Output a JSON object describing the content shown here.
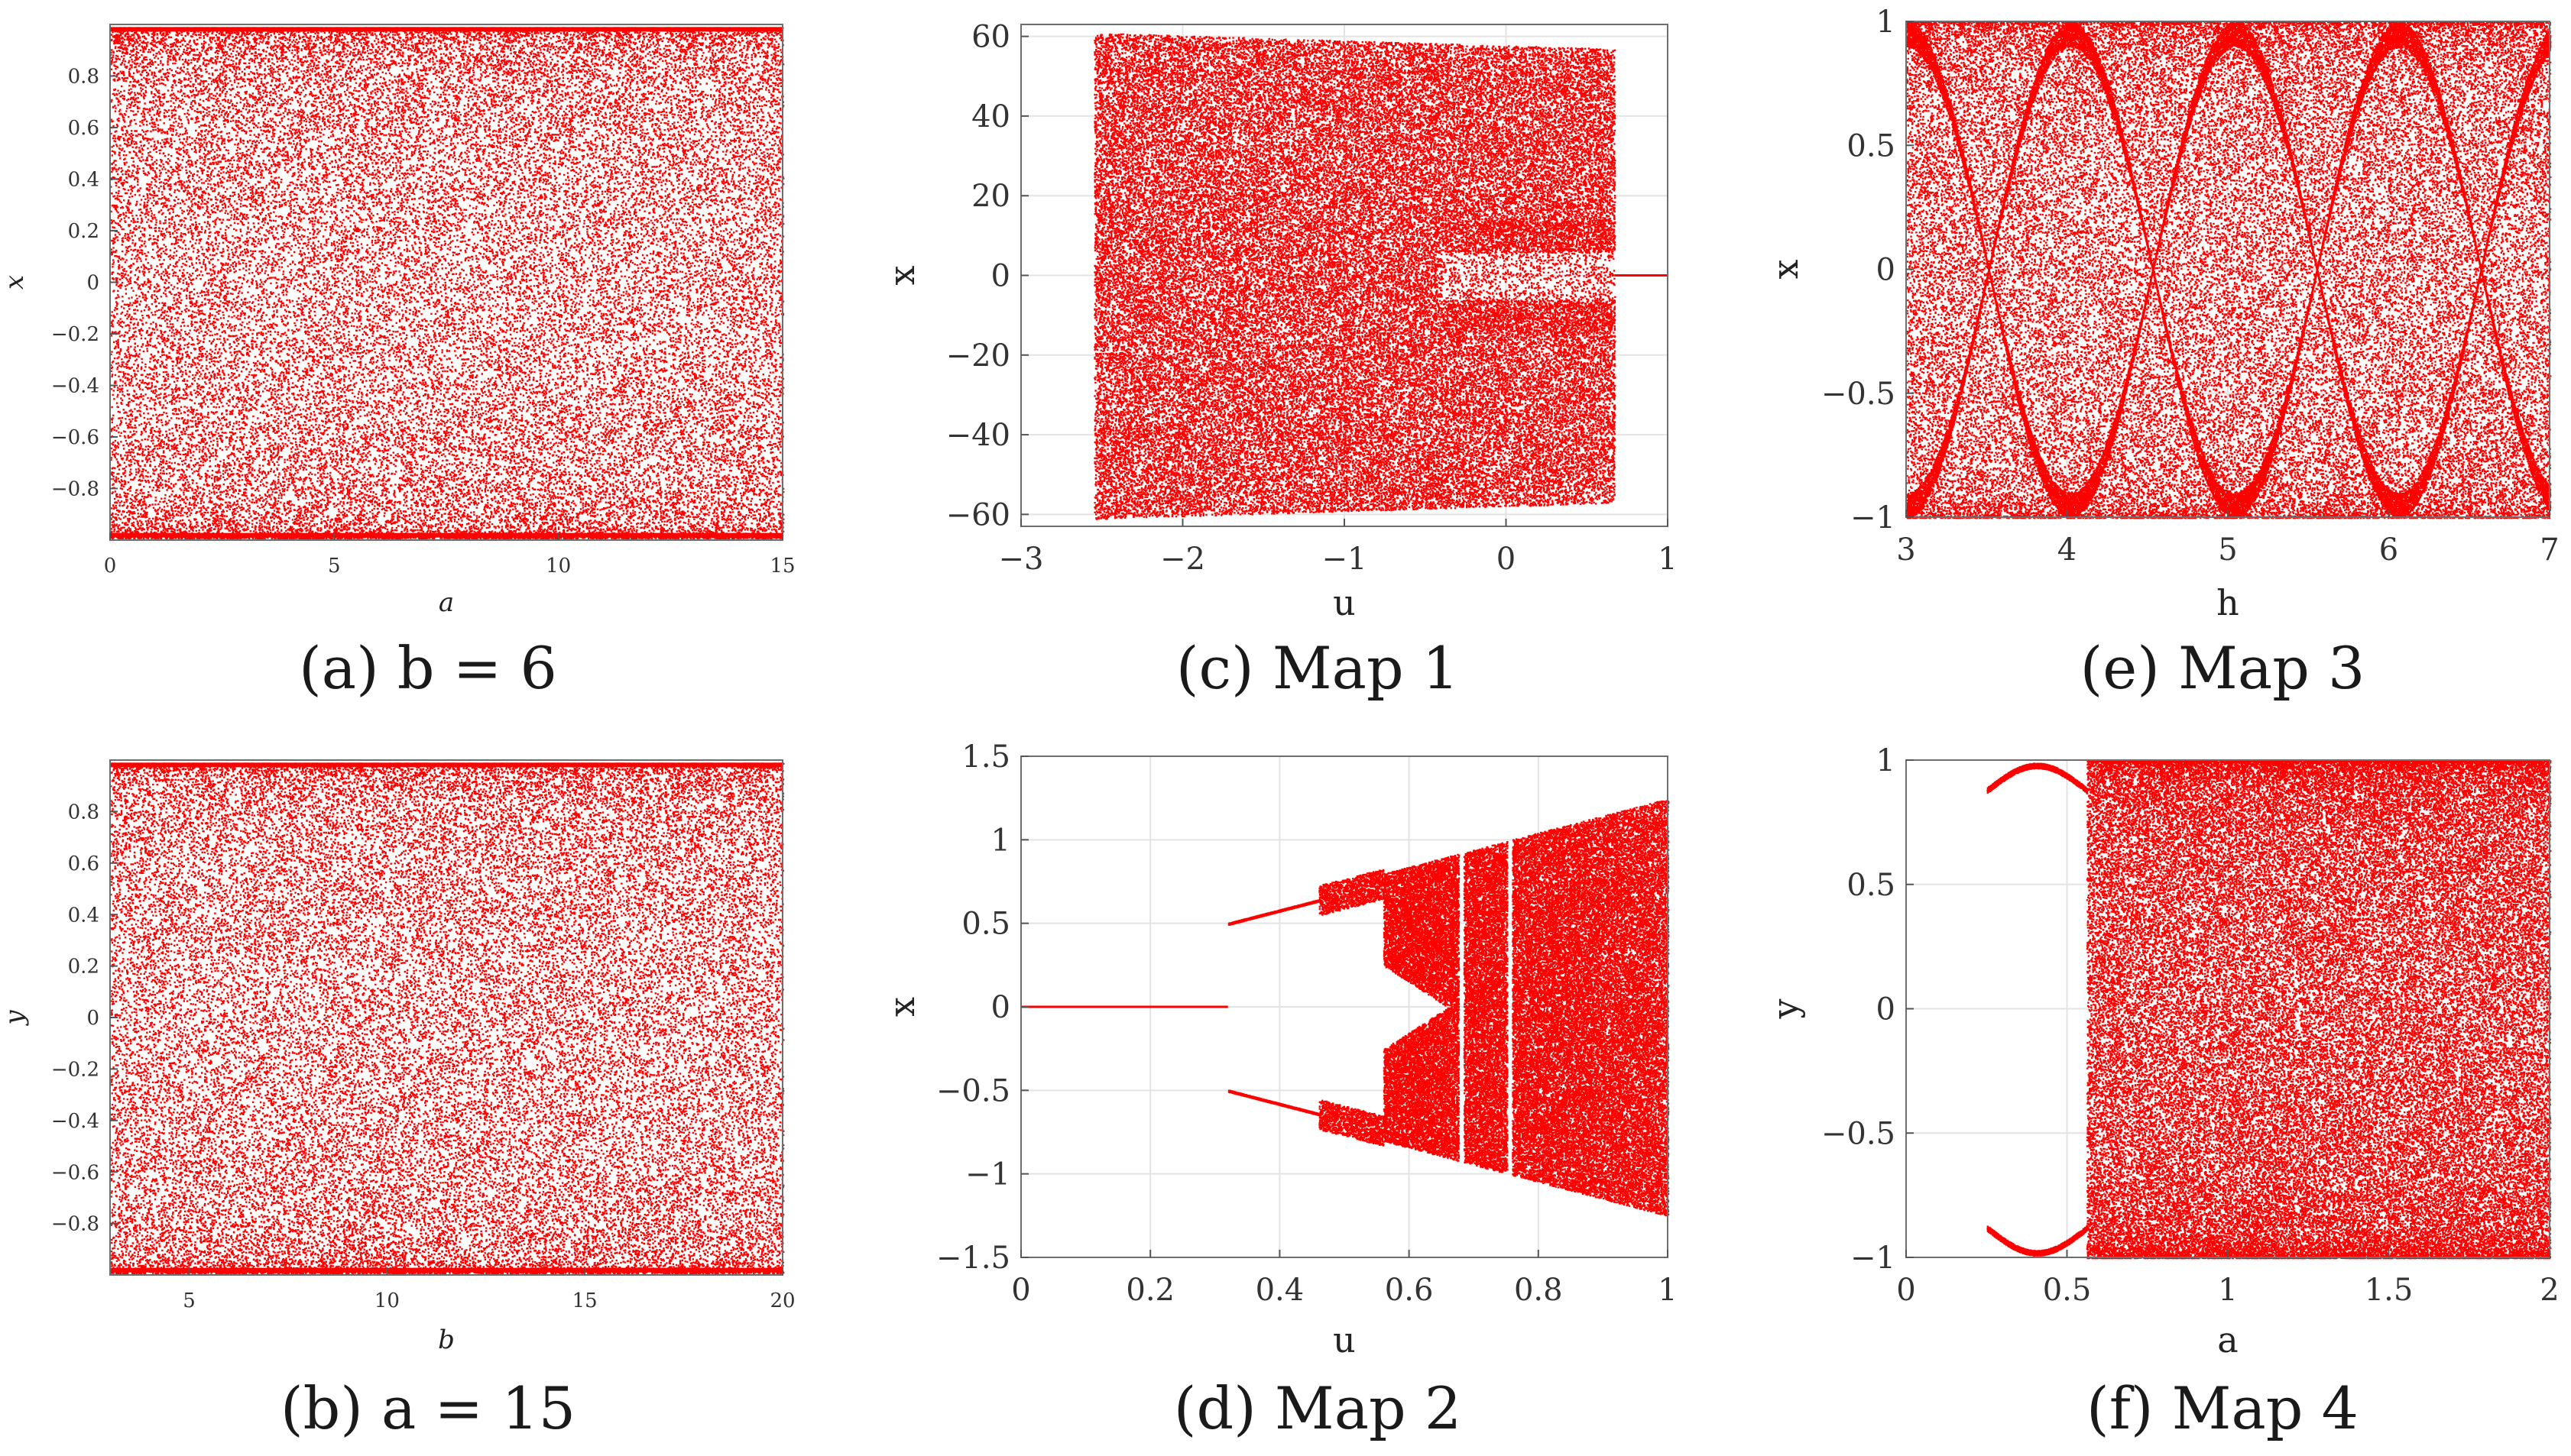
{
  "figure": {
    "captions": [
      "(a) b = 6",
      "(b) a = 15",
      "(c) Map 1",
      "(d) Map 2",
      "(e) Map 3",
      "(f) Map 4"
    ],
    "point_color": "#ff0000"
  },
  "chart_data": [
    {
      "id": "a",
      "type": "scatter",
      "title": "(a) b = 6",
      "xlabel": "a",
      "ylabel": "x",
      "xlim": [
        0,
        15
      ],
      "ylim": [
        -1,
        1
      ],
      "xticks": [
        0,
        5,
        10,
        15
      ],
      "xtick_labels": [
        "0",
        "5",
        "10",
        "15"
      ],
      "yticks": [
        0.8,
        0.6,
        0.4,
        0.2,
        0,
        -0.2,
        -0.4,
        -0.6,
        -0.8
      ],
      "ytick_labels": [
        "0.8",
        "0.6",
        "0.4",
        "0.2",
        "0",
        "−0.2",
        "−0.4",
        "−0.6",
        "−0.8"
      ],
      "grid": false,
      "description": "bifurcation diagram, chaotic over entire range, x uniformly filled in [-1, 1]"
    },
    {
      "id": "b",
      "type": "scatter",
      "title": "(b) a = 15",
      "xlabel": "b",
      "ylabel": "y",
      "xlim": [
        3,
        20
      ],
      "ylim": [
        -1,
        1
      ],
      "xticks": [
        5,
        10,
        15,
        20
      ],
      "xtick_labels": [
        "5",
        "10",
        "15",
        "20"
      ],
      "yticks": [
        0.8,
        0.6,
        0.4,
        0.2,
        0,
        -0.2,
        -0.4,
        -0.6,
        -0.8
      ],
      "ytick_labels": [
        "0.8",
        "0.6",
        "0.4",
        "0.2",
        "0",
        "−0.2",
        "−0.4",
        "−0.6",
        "−0.8"
      ],
      "grid": false,
      "description": "bifurcation diagram, chaotic over entire range, y uniformly filled in [-1, 1]"
    },
    {
      "id": "c",
      "type": "scatter",
      "title": "(c) Map 1",
      "xlabel": "u",
      "ylabel": "x",
      "xlim": [
        -3,
        1
      ],
      "ylim": [
        -63,
        63
      ],
      "xticks": [
        -3,
        -2,
        -1,
        0,
        1
      ],
      "xtick_labels": [
        "−3",
        "−2",
        "−1",
        "0",
        "1"
      ],
      "yticks": [
        60,
        40,
        20,
        0,
        -20,
        -40,
        -60
      ],
      "ytick_labels": [
        "60",
        "40",
        "20",
        "0",
        "−20",
        "−40",
        "−60"
      ],
      "grid": true,
      "chaotic_range": [
        -2.55,
        0.67
      ],
      "x_amplitude_at_range_ends": [
        61,
        57
      ],
      "fixed_point": {
        "u_from": 0.67,
        "u_to": 1.0,
        "x": 0
      }
    },
    {
      "id": "d",
      "type": "scatter",
      "title": "(d) Map 2",
      "xlabel": "u",
      "ylabel": "x",
      "xlim": [
        0,
        1
      ],
      "ylim": [
        -1.5,
        1.5
      ],
      "xticks": [
        0,
        0.2,
        0.4,
        0.6,
        0.8,
        1
      ],
      "xtick_labels": [
        "0",
        "0.2",
        "0.4",
        "0.6",
        "0.8",
        "1"
      ],
      "yticks": [
        1.5,
        1,
        0.5,
        0,
        -0.5,
        -1,
        -1.5
      ],
      "ytick_labels": [
        "1.5",
        "1",
        "0.5",
        "0",
        "−0.5",
        "−1",
        "−1.5"
      ],
      "grid": true,
      "fixed_point": {
        "u_from": 0,
        "u_to": 0.32,
        "x": 0
      },
      "period_doubling_start": 0.32,
      "chaos_onset": 0.56,
      "periodic_windows": [
        0.68,
        0.755
      ],
      "x_amplitude_at_u1": 1.25
    },
    {
      "id": "e",
      "type": "scatter",
      "title": "(e) Map 3",
      "xlabel": "h",
      "ylabel": "x",
      "xlim": [
        3,
        7
      ],
      "ylim": [
        -1,
        1
      ],
      "xticks": [
        3,
        4,
        5,
        6,
        7
      ],
      "xtick_labels": [
        "3",
        "4",
        "5",
        "6",
        "7"
      ],
      "yticks": [
        1,
        0.5,
        0,
        -0.5,
        -1
      ],
      "ytick_labels": [
        "1",
        "0.5",
        "0",
        "−0.5",
        "−1"
      ],
      "grid": true,
      "description": "chaotic over entire range, dense lens-shaped bands with nodes near h = 3.45, 4.0, 4.45, 4.95, 5.5, 6.0"
    },
    {
      "id": "f",
      "type": "scatter",
      "title": "(f) Map 4",
      "xlabel": "a",
      "ylabel": "y",
      "xlim": [
        0,
        2
      ],
      "ylim": [
        -1,
        1
      ],
      "xticks": [
        0,
        0.5,
        1,
        1.5,
        2
      ],
      "xtick_labels": [
        "0",
        "0.5",
        "1",
        "1.5",
        "2"
      ],
      "yticks": [
        1,
        0.5,
        0,
        -0.5,
        -1
      ],
      "ytick_labels": [
        "1",
        "0.5",
        "0",
        "−0.5",
        "−1"
      ],
      "grid": true,
      "chaos_onset": 0.56,
      "periodic_branches_range": [
        0.25,
        0.56
      ]
    }
  ]
}
